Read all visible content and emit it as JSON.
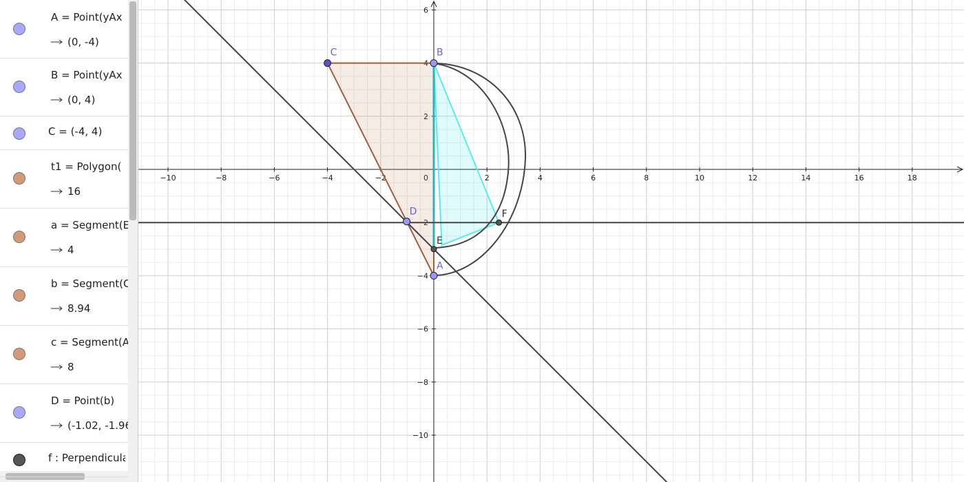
{
  "algebra": {
    "items": [
      {
        "definition": "A = Point(yAx",
        "value": "(0, -4)"
      },
      {
        "definition": "B = Point(yAx",
        "value": "(0, 4)"
      },
      {
        "definition": "C = (-4, 4)"
      },
      {
        "definition": "t1 = Polygon(",
        "value": "16"
      },
      {
        "definition": "a = Segment(E",
        "value": "4"
      },
      {
        "definition": "b = Segment(C",
        "value": "8.94"
      },
      {
        "definition": "c = Segment(A",
        "value": "8"
      },
      {
        "definition": "D = Point(b)",
        "value": "(-1.02, -1.96)"
      },
      {
        "definition": "f : Perpendicula"
      }
    ]
  },
  "graphics": {
    "origin_label": "0",
    "x_ticks": [
      {
        "value": -10,
        "label": "−10"
      },
      {
        "value": -8,
        "label": "−8"
      },
      {
        "value": -6,
        "label": "−6"
      },
      {
        "value": -4,
        "label": "−4"
      },
      {
        "value": -2,
        "label": "−2"
      },
      2,
      4,
      6,
      8,
      10,
      12,
      14,
      16,
      18
    ],
    "y_ticks": [
      6,
      4,
      2,
      {
        "value": -2,
        "label": "−2"
      },
      {
        "value": -4,
        "label": "−4"
      },
      {
        "value": -6,
        "label": "−6"
      },
      {
        "value": -8,
        "label": "−8"
      },
      {
        "value": -10,
        "label": "−10"
      }
    ],
    "points": [
      {
        "label": "C"
      },
      {
        "label": "B"
      },
      {
        "label": "D"
      },
      {
        "label": "E"
      },
      {
        "label": "F"
      },
      {
        "label": "A"
      }
    ]
  }
}
